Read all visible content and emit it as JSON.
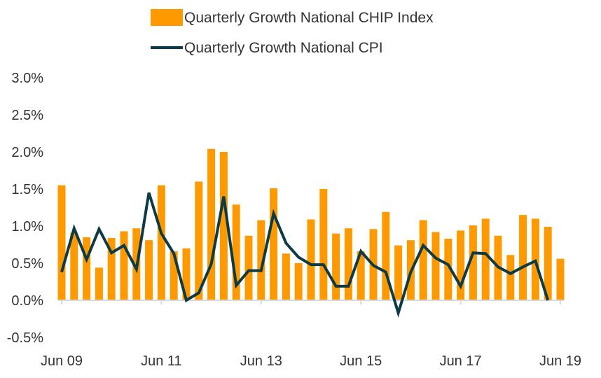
{
  "chart_data": {
    "type": "bar",
    "title": "",
    "xlabel": "",
    "ylabel": "",
    "ylim": [
      -0.5,
      3.0
    ],
    "yticks": [
      -0.5,
      0.0,
      0.5,
      1.0,
      1.5,
      2.0,
      2.5,
      3.0
    ],
    "ytick_labels": [
      "-0.5%",
      "0.0%",
      "0.5%",
      "1.0%",
      "1.5%",
      "2.0%",
      "2.5%",
      "3.0%"
    ],
    "x_tick_labels": [
      {
        "index": 0,
        "label": "Jun 09"
      },
      {
        "index": 8,
        "label": "Jun 11"
      },
      {
        "index": 16,
        "label": "Jun 13"
      },
      {
        "index": 24,
        "label": "Jun 15"
      },
      {
        "index": 32,
        "label": "Jun 17"
      },
      {
        "index": 40,
        "label": "Jun 19"
      }
    ],
    "legend_position": "top-center",
    "series": [
      {
        "name": "Quarterly Growth National CHIP Index",
        "kind": "bar",
        "color": "#FF9900",
        "values": [
          1.55,
          0.91,
          0.85,
          0.44,
          0.84,
          0.93,
          0.97,
          0.81,
          1.55,
          0.66,
          0.7,
          1.6,
          2.04,
          2.0,
          1.29,
          0.87,
          1.08,
          1.51,
          0.63,
          0.5,
          1.09,
          1.5,
          0.9,
          0.97,
          0.66,
          0.96,
          1.19,
          0.74,
          0.81,
          1.08,
          0.92,
          0.83,
          0.94,
          1.01,
          1.1,
          0.87,
          0.61,
          1.15,
          1.1,
          0.99,
          0.56
        ]
      },
      {
        "name": "Quarterly Growth National CPI",
        "kind": "line",
        "color": "#0D3B45",
        "values": [
          0.38,
          0.97,
          0.55,
          0.96,
          0.64,
          0.74,
          0.42,
          1.45,
          0.9,
          0.63,
          0.0,
          0.1,
          0.49,
          1.4,
          0.2,
          0.4,
          0.4,
          1.17,
          0.77,
          0.58,
          0.48,
          0.48,
          0.19,
          0.19,
          0.66,
          0.47,
          0.38,
          -0.17,
          0.38,
          0.74,
          0.57,
          0.48,
          0.19,
          0.64,
          0.63,
          0.45,
          0.36,
          0.45,
          0.53,
          0.0
        ]
      }
    ]
  }
}
